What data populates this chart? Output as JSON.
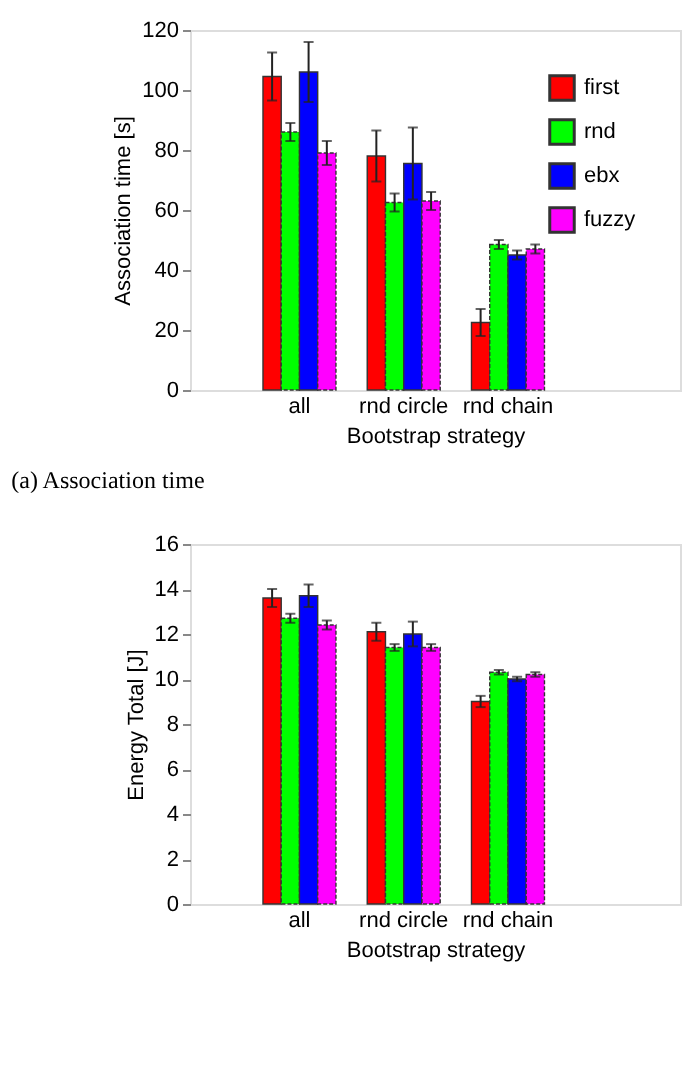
{
  "chart_data": [
    {
      "type": "bar",
      "ylabel": "Association time [s]",
      "xlabel": "Bootstrap strategy",
      "annotations": [
        "(a) Association time"
      ],
      "categories": [
        "all",
        "rnd circle",
        "rnd chain"
      ],
      "series": [
        {
          "name": "first",
          "color": "#ff0000",
          "values": [
            104.5,
            78,
            22.5
          ],
          "errors": [
            8,
            8.5,
            4.5
          ]
        },
        {
          "name": "rnd",
          "color": "#00ff00",
          "values": [
            86,
            62.5,
            48.5
          ],
          "errors": [
            3,
            3,
            1.5
          ]
        },
        {
          "name": "ebx",
          "color": "#0000ff",
          "values": [
            106,
            75.5,
            45
          ],
          "errors": [
            10,
            12,
            1.5
          ]
        },
        {
          "name": "fuzzy",
          "color": "#ff00ff",
          "values": [
            79,
            63,
            47
          ],
          "errors": [
            4,
            3,
            1.5
          ]
        }
      ],
      "ylim": [
        0,
        120
      ],
      "yticks": [
        0,
        20,
        40,
        60,
        80,
        100,
        120
      ],
      "grid": false,
      "legend": "top right"
    },
    {
      "type": "bar",
      "ylabel": "Energy Total [J]",
      "xlabel": "Bootstrap strategy",
      "categories": [
        "all",
        "rnd circle",
        "rnd chain"
      ],
      "series": [
        {
          "name": "first",
          "color": "#ff0000",
          "values": [
            13.6,
            12.1,
            9.0
          ],
          "errors": [
            0.4,
            0.4,
            0.25
          ]
        },
        {
          "name": "rnd",
          "color": "#00ff00",
          "values": [
            12.7,
            11.4,
            10.3
          ],
          "errors": [
            0.2,
            0.15,
            0.1
          ]
        },
        {
          "name": "ebx",
          "color": "#0000ff",
          "values": [
            13.7,
            12.0,
            10.0
          ],
          "errors": [
            0.5,
            0.55,
            0.1
          ]
        },
        {
          "name": "fuzzy",
          "color": "#ff00ff",
          "values": [
            12.4,
            11.4,
            10.2
          ],
          "errors": [
            0.2,
            0.15,
            0.1
          ]
        }
      ],
      "ylim": [
        0,
        16
      ],
      "yticks": [
        0,
        2,
        4,
        6,
        8,
        10,
        12,
        14,
        16
      ],
      "grid": false,
      "legend": "top right"
    }
  ]
}
